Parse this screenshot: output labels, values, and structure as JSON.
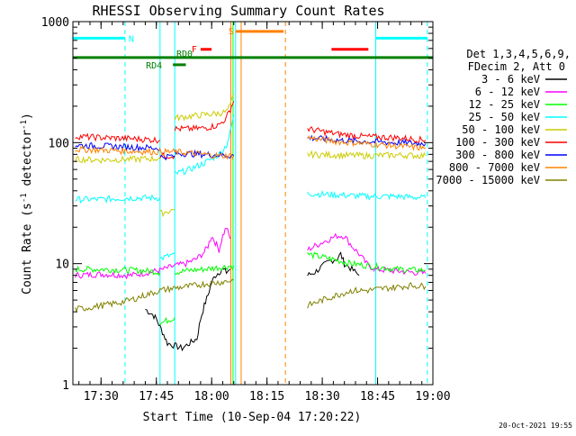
{
  "chart_data": {
    "type": "line",
    "title": "RHESSI Observing Summary Count Rates",
    "xlabel": "Start Time (10-Sep-04 17:20:22)",
    "ylabel": "Count Rate (s⁻¹ detector⁻¹)",
    "ylabel_base": "Count Rate (s",
    "ylabel_exp1": "-1",
    "ylabel_mid": " detector",
    "ylabel_exp2": "-1",
    "ylabel_end": ")",
    "x_unit": "minutes since 17:00",
    "xlim": [
      22.37,
      120
    ],
    "ylim": [
      1,
      1000
    ],
    "yscale": "log",
    "x_ticks": [
      {
        "x": 30,
        "label": "17:30"
      },
      {
        "x": 45,
        "label": "17:45"
      },
      {
        "x": 60,
        "label": "18:00"
      },
      {
        "x": 75,
        "label": "18:15"
      },
      {
        "x": 90,
        "label": "18:30"
      },
      {
        "x": 105,
        "label": "18:45"
      },
      {
        "x": 120,
        "label": "19:00"
      }
    ],
    "y_ticks": [
      {
        "y": 1,
        "label": "1"
      },
      {
        "y": 10,
        "label": "10"
      },
      {
        "y": 100,
        "label": "100"
      },
      {
        "y": 1000,
        "label": "1000"
      }
    ],
    "grid": false,
    "legend_position": "right",
    "legend_header": [
      "Det 1,3,4,5,6,9,",
      "FDecim 2, Att 0"
    ],
    "timestamp": "20-Oct-2021 19:55",
    "series": [
      {
        "name": "3 - 6 keV",
        "color": "#000000",
        "segments": [
          {
            "x": [
              42,
              44,
              45,
              46,
              47,
              48,
              50,
              52,
              54,
              56,
              57,
              58,
              59,
              60,
              61,
              62,
              63,
              64,
              65
            ],
            "y": [
              4.2,
              3.8,
              3.5,
              3.0,
              2.6,
              2.2,
              2.1,
              2.0,
              2.2,
              2.4,
              3.5,
              4.5,
              5.5,
              7.0,
              8.0,
              8.5,
              9.0,
              8.5,
              9.0
            ]
          },
          {
            "x": [
              86,
              88,
              90,
              92,
              94,
              95,
              96,
              98,
              100
            ],
            "y": [
              8,
              8.5,
              9.5,
              10.5,
              11,
              12,
              10,
              9,
              8
            ]
          }
        ]
      },
      {
        "name": "6 - 12 keV",
        "color": "#ff00ff",
        "segments": [
          {
            "x": [
              23,
              30,
              38,
              42,
              46,
              48,
              50,
              53,
              56,
              58,
              59,
              60,
              61,
              62,
              63,
              64,
              65
            ],
            "y": [
              8.0,
              8.2,
              8.0,
              8.4,
              8.8,
              9.2,
              9.6,
              10,
              11,
              12.5,
              14,
              17,
              15,
              13,
              17,
              20,
              16
            ]
          },
          {
            "x": [
              86,
              88,
              90,
              92,
              94,
              96,
              98,
              100,
              102,
              104
            ],
            "y": [
              13,
              14,
              15,
              16,
              17,
              17,
              14,
              12,
              10,
              9
            ]
          },
          {
            "x": [
              104,
              110,
              118
            ],
            "y": [
              9,
              8.7,
              8.3
            ]
          }
        ]
      },
      {
        "name": "12 - 25 keV",
        "color": "#00ff00",
        "segments": [
          {
            "x": [
              23,
              30,
              40,
              45,
              46
            ],
            "y": [
              9.0,
              9.0,
              8.8,
              8.6,
              8.4
            ]
          },
          {
            "x": [
              46,
              48,
              50
            ],
            "y": [
              3.2,
              3.4,
              3.6
            ]
          },
          {
            "x": [
              50,
              54,
              58,
              62,
              66
            ],
            "y": [
              8.5,
              8.8,
              9.0,
              9.3,
              9.6
            ]
          },
          {
            "x": [
              86,
              92,
              98,
              104,
              110,
              118
            ],
            "y": [
              12,
              11,
              10,
              9.5,
              9.0,
              8.8
            ]
          }
        ]
      },
      {
        "name": "25 - 50 keV",
        "color": "#00ffff",
        "segments": [
          {
            "x": [
              23,
              30,
              38,
              46
            ],
            "y": [
              34,
              34,
              35,
              35
            ]
          },
          {
            "x": [
              46,
              48,
              50
            ],
            "y": [
              11,
              11.5,
              12
            ]
          },
          {
            "x": [
              50,
              54,
              58,
              62,
              64,
              65,
              66
            ],
            "y": [
              55,
              60,
              68,
              80,
              95,
              120,
              170
            ]
          },
          {
            "x": [
              86,
              94,
              102,
              110,
              118
            ],
            "y": [
              38,
              37,
              36,
              36,
              35
            ]
          }
        ]
      },
      {
        "name": "50 - 100 keV",
        "color": "#cccc00",
        "segments": [
          {
            "x": [
              23,
              30,
              38,
              46
            ],
            "y": [
              73,
              72,
              73,
              74
            ]
          },
          {
            "x": [
              46,
              48,
              50
            ],
            "y": [
              26,
              27,
              28
            ]
          },
          {
            "x": [
              50,
              54,
              58,
              62,
              64,
              65,
              66
            ],
            "y": [
              160,
              165,
              170,
              175,
              180,
              200,
              250
            ]
          },
          {
            "x": [
              86,
              94,
              102,
              110,
              118
            ],
            "y": [
              80,
              79,
              78,
              79,
              78
            ]
          }
        ]
      },
      {
        "name": "100 - 300 keV",
        "color": "#ff0000",
        "segments": [
          {
            "x": [
              23,
              30,
              38,
              46
            ],
            "y": [
              113,
              110,
              108,
              105
            ]
          },
          {
            "x": [
              46,
              48,
              50
            ],
            "y": [
              78,
              78,
              78
            ]
          },
          {
            "x": [
              50,
              54,
              58,
              62,
              64,
              65,
              66
            ],
            "y": [
              130,
              130,
              132,
              140,
              160,
              190,
              220
            ]
          },
          {
            "x": [
              86,
              94,
              102,
              110,
              118
            ],
            "y": [
              130,
              118,
              112,
              110,
              105
            ]
          }
        ]
      },
      {
        "name": "300 - 800 keV",
        "color": "#0000ff",
        "segments": [
          {
            "x": [
              23,
              30,
              38,
              46
            ],
            "y": [
              95,
              94,
              92,
              90
            ]
          },
          {
            "x": [
              46,
              48,
              50
            ],
            "y": [
              76,
              77,
              78
            ]
          },
          {
            "x": [
              50,
              54,
              58,
              62,
              66
            ],
            "y": [
              82,
              81,
              80,
              79,
              78
            ]
          },
          {
            "x": [
              86,
              94,
              102,
              110,
              118
            ],
            "y": [
              110,
              105,
              102,
              100,
              98
            ]
          }
        ]
      },
      {
        "name": "800 - 7000 keV",
        "color": "#ff8000",
        "segments": [
          {
            "x": [
              23,
              30,
              38,
              46,
              50,
              54,
              58,
              62,
              66
            ],
            "y": [
              88,
              87,
              85,
              84,
              84,
              82,
              80,
              78,
              78
            ]
          },
          {
            "x": [
              86,
              94,
              102,
              110,
              118
            ],
            "y": [
              110,
              102,
              98,
              94,
              90
            ]
          }
        ]
      },
      {
        "name": "7000 - 15000 keV",
        "color": "#808000",
        "segments": [
          {
            "x": [
              23,
              26,
              30,
              34,
              38,
              42,
              46,
              50,
              54,
              58,
              62,
              66
            ],
            "y": [
              4.2,
              4.3,
              4.5,
              4.7,
              5.0,
              5.5,
              6.0,
              6.3,
              6.5,
              6.8,
              7.0,
              7.3
            ]
          },
          {
            "x": [
              86,
              90,
              94,
              98,
              102,
              106,
              110,
              114,
              118
            ],
            "y": [
              4.5,
              5.0,
              5.5,
              6.0,
              6.0,
              6.2,
              6.4,
              6.6,
              6.5
            ]
          }
        ]
      }
    ],
    "flags": [
      {
        "label": "N",
        "color": "#00ffff",
        "segments": [
          [
            22.37,
            36.5
          ],
          [
            104.5,
            118.5
          ]
        ],
        "y": 730
      },
      {
        "label": "S",
        "color": "#ff8000",
        "segments": [
          [
            66.5,
            79.5
          ]
        ],
        "y": 830
      },
      {
        "label": "F",
        "color": "#ff0000",
        "segments": [
          [
            57,
            60
          ],
          [
            92.5,
            102.5
          ]
        ],
        "y": 590
      },
      {
        "label": "RD0",
        "color": "#008000",
        "segments": [
          [
            22.37,
            120
          ]
        ],
        "y": 505
      },
      {
        "label": "RD4",
        "color": "#008000",
        "segments": [
          [
            49.5,
            53
          ]
        ],
        "y": 440
      }
    ],
    "vlines": [
      {
        "x": 22.37,
        "color": "#00ffff",
        "dash": "none"
      },
      {
        "x": 36.5,
        "color": "#00ffff",
        "dash": "dash"
      },
      {
        "x": 46.0,
        "color": "#00ffff",
        "dash": "none"
      },
      {
        "x": 50.0,
        "color": "#00ffff",
        "dash": "none"
      },
      {
        "x": 66.5,
        "color": "#00ffff",
        "dash": "none"
      },
      {
        "x": 65.2,
        "color": "#ff8000",
        "dash": "none"
      },
      {
        "x": 68.0,
        "color": "#ff8000",
        "dash": "none"
      },
      {
        "x": 80.0,
        "color": "#ff8000",
        "dash": "dash"
      },
      {
        "x": 104.5,
        "color": "#00ffff",
        "dash": "none"
      },
      {
        "x": 118.5,
        "color": "#00ffff",
        "dash": "dash"
      },
      {
        "x": 65.8,
        "color": "#00ff00",
        "dash": "none"
      }
    ]
  }
}
